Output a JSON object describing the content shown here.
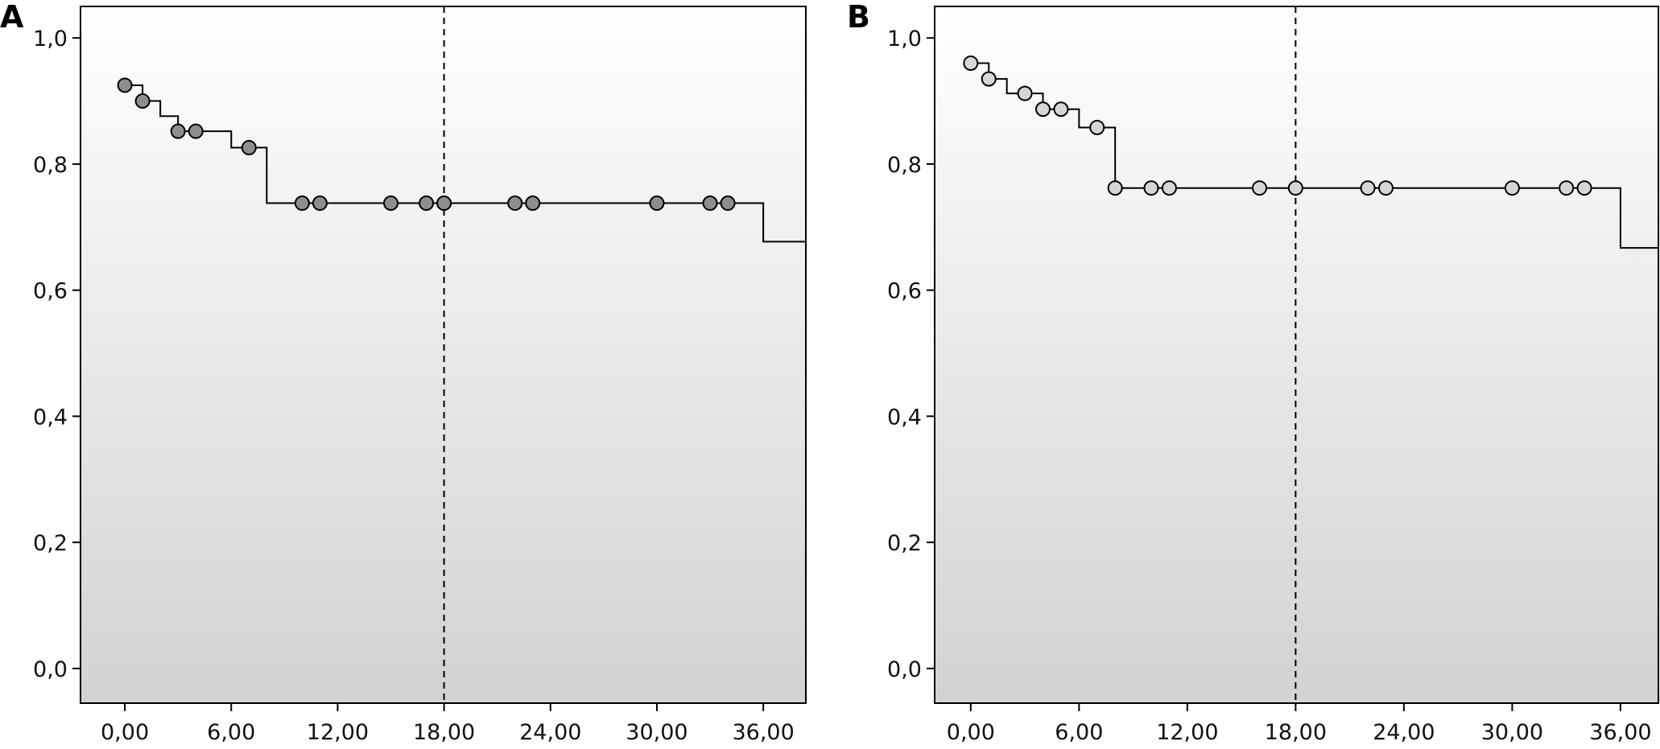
{
  "chart_data": [
    {
      "panel_label": "A",
      "type": "line",
      "step": true,
      "xlim": [
        -2.5,
        38.4
      ],
      "ylim": [
        -0.055,
        1.05
      ],
      "xticks": [
        0,
        6,
        12,
        18,
        24,
        30,
        36
      ],
      "xtick_labels": [
        "0,00",
        "6,00",
        "12,00",
        "18,00",
        "24,00",
        "30,00",
        "36,00"
      ],
      "yticks": [
        0,
        0.2,
        0.4,
        0.6,
        0.8,
        1.0
      ],
      "ytick_labels": [
        "0,0",
        "0,2",
        "0,4",
        "0,6",
        "0,8",
        "1,0"
      ],
      "reference_line_x": 18,
      "marker_fill": "#8e8e8e",
      "step_x": [
        0,
        1,
        2,
        3,
        6,
        8,
        36,
        38.4
      ],
      "step_y": [
        0.925,
        0.9,
        0.876,
        0.852,
        0.826,
        0.738,
        0.677,
        0.677
      ],
      "censored": [
        {
          "x": 0,
          "y": 0.925
        },
        {
          "x": 1,
          "y": 0.9
        },
        {
          "x": 3,
          "y": 0.852
        },
        {
          "x": 4,
          "y": 0.852
        },
        {
          "x": 7,
          "y": 0.826
        },
        {
          "x": 10,
          "y": 0.738
        },
        {
          "x": 11,
          "y": 0.738
        },
        {
          "x": 15,
          "y": 0.738
        },
        {
          "x": 17,
          "y": 0.738
        },
        {
          "x": 18,
          "y": 0.738
        },
        {
          "x": 22,
          "y": 0.738
        },
        {
          "x": 23,
          "y": 0.738
        },
        {
          "x": 30,
          "y": 0.738
        },
        {
          "x": 33,
          "y": 0.738
        },
        {
          "x": 34,
          "y": 0.738
        }
      ]
    },
    {
      "panel_label": "B",
      "type": "line",
      "step": true,
      "xlim": [
        -2,
        38.1
      ],
      "ylim": [
        -0.055,
        1.05
      ],
      "xticks": [
        0,
        6,
        12,
        18,
        24,
        30,
        36
      ],
      "xtick_labels": [
        "0,00",
        "6,00",
        "12,00",
        "18,00",
        "24,00",
        "30,00",
        "36,00"
      ],
      "yticks": [
        0,
        0.2,
        0.4,
        0.6,
        0.8,
        1.0
      ],
      "ytick_labels": [
        "0,0",
        "0,2",
        "0,4",
        "0,6",
        "0,8",
        "1,0"
      ],
      "reference_line_x": 18,
      "marker_fill": "#d6d6d6",
      "step_x": [
        0,
        1,
        2,
        4,
        6,
        8,
        36,
        38.1
      ],
      "step_y": [
        0.96,
        0.935,
        0.912,
        0.887,
        0.858,
        0.762,
        0.667,
        0.667
      ],
      "censored": [
        {
          "x": 0,
          "y": 0.96
        },
        {
          "x": 1,
          "y": 0.935
        },
        {
          "x": 3,
          "y": 0.912
        },
        {
          "x": 4,
          "y": 0.887
        },
        {
          "x": 5,
          "y": 0.887
        },
        {
          "x": 7,
          "y": 0.858
        },
        {
          "x": 8,
          "y": 0.762
        },
        {
          "x": 10,
          "y": 0.762
        },
        {
          "x": 11,
          "y": 0.762
        },
        {
          "x": 16,
          "y": 0.762
        },
        {
          "x": 18,
          "y": 0.762
        },
        {
          "x": 22,
          "y": 0.762
        },
        {
          "x": 23,
          "y": 0.762
        },
        {
          "x": 30,
          "y": 0.762
        },
        {
          "x": 33,
          "y": 0.762
        },
        {
          "x": 34,
          "y": 0.762
        }
      ]
    }
  ]
}
